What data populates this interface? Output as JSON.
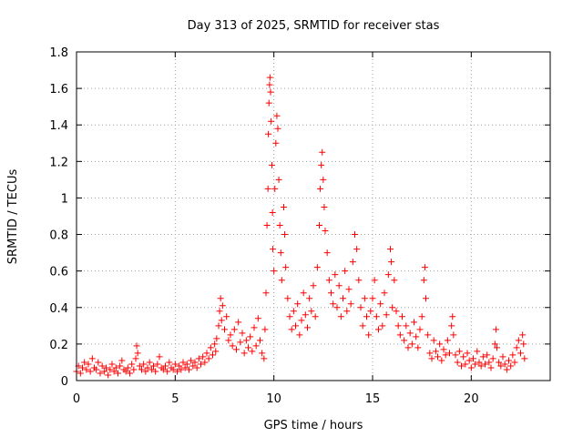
{
  "chart_data": {
    "type": "scatter",
    "title": "Day 313 of 2025, SRMTID for receiver stas",
    "xlabel": "GPS time / hours",
    "ylabel": "SRMTID / TECUs",
    "xlim": [
      0,
      24
    ],
    "ylim": [
      0,
      1.8
    ],
    "x_ticks": [
      0,
      5,
      10,
      15,
      20
    ],
    "x_tick_labels": [
      "0",
      "5",
      "10",
      "15",
      "20"
    ],
    "y_ticks": [
      0,
      0.2,
      0.4,
      0.6,
      0.8,
      1.0,
      1.2,
      1.4,
      1.6,
      1.8
    ],
    "y_tick_labels": [
      "0",
      "0.2",
      "0.4",
      "0.6",
      "0.8",
      "1",
      "1.2",
      "1.4",
      "1.6",
      "1.8"
    ],
    "grid": true,
    "marker": "+",
    "color": "#ff0000",
    "series": [
      {
        "name": "SRMTID",
        "points": [
          [
            0.0,
            0.05
          ],
          [
            0.1,
            0.08
          ],
          [
            0.2,
            0.04
          ],
          [
            0.3,
            0.07
          ],
          [
            0.4,
            0.1
          ],
          [
            0.5,
            0.06
          ],
          [
            0.6,
            0.09
          ],
          [
            0.7,
            0.05
          ],
          [
            0.8,
            0.12
          ],
          [
            0.9,
            0.07
          ],
          [
            1.0,
            0.06
          ],
          [
            1.1,
            0.1
          ],
          [
            1.2,
            0.04
          ],
          [
            1.3,
            0.08
          ],
          [
            1.4,
            0.05
          ],
          [
            1.5,
            0.07
          ],
          [
            1.6,
            0.03
          ],
          [
            1.7,
            0.06
          ],
          [
            1.8,
            0.09
          ],
          [
            1.9,
            0.05
          ],
          [
            2.0,
            0.07
          ],
          [
            2.1,
            0.04
          ],
          [
            2.2,
            0.08
          ],
          [
            2.3,
            0.11
          ],
          [
            2.4,
            0.06
          ],
          [
            2.5,
            0.05
          ],
          [
            2.6,
            0.07
          ],
          [
            2.7,
            0.04
          ],
          [
            2.8,
            0.09
          ],
          [
            2.9,
            0.06
          ],
          [
            3.0,
            0.12
          ],
          [
            3.05,
            0.19
          ],
          [
            3.1,
            0.15
          ],
          [
            3.2,
            0.08
          ],
          [
            3.3,
            0.06
          ],
          [
            3.4,
            0.09
          ],
          [
            3.5,
            0.05
          ],
          [
            3.6,
            0.07
          ],
          [
            3.7,
            0.1
          ],
          [
            3.8,
            0.06
          ],
          [
            3.9,
            0.08
          ],
          [
            4.0,
            0.05
          ],
          [
            4.1,
            0.09
          ],
          [
            4.2,
            0.13
          ],
          [
            4.3,
            0.07
          ],
          [
            4.4,
            0.06
          ],
          [
            4.5,
            0.08
          ],
          [
            4.6,
            0.05
          ],
          [
            4.7,
            0.1
          ],
          [
            4.8,
            0.07
          ],
          [
            4.9,
            0.06
          ],
          [
            5.0,
            0.09
          ],
          [
            5.1,
            0.05
          ],
          [
            5.2,
            0.08
          ],
          [
            5.3,
            0.06
          ],
          [
            5.4,
            0.1
          ],
          [
            5.5,
            0.07
          ],
          [
            5.6,
            0.09
          ],
          [
            5.7,
            0.06
          ],
          [
            5.8,
            0.11
          ],
          [
            5.9,
            0.08
          ],
          [
            6.0,
            0.1
          ],
          [
            6.1,
            0.07
          ],
          [
            6.2,
            0.12
          ],
          [
            6.3,
            0.09
          ],
          [
            6.4,
            0.13
          ],
          [
            6.5,
            0.1
          ],
          [
            6.6,
            0.15
          ],
          [
            6.7,
            0.12
          ],
          [
            6.8,
            0.18
          ],
          [
            6.9,
            0.14
          ],
          [
            7.0,
            0.2
          ],
          [
            7.05,
            0.16
          ],
          [
            7.1,
            0.23
          ],
          [
            7.2,
            0.3
          ],
          [
            7.25,
            0.38
          ],
          [
            7.3,
            0.45
          ],
          [
            7.35,
            0.33
          ],
          [
            7.4,
            0.41
          ],
          [
            7.5,
            0.28
          ],
          [
            7.6,
            0.35
          ],
          [
            7.7,
            0.22
          ],
          [
            7.8,
            0.25
          ],
          [
            7.9,
            0.19
          ],
          [
            8.0,
            0.28
          ],
          [
            8.1,
            0.17
          ],
          [
            8.2,
            0.32
          ],
          [
            8.3,
            0.21
          ],
          [
            8.4,
            0.26
          ],
          [
            8.5,
            0.15
          ],
          [
            8.6,
            0.22
          ],
          [
            8.7,
            0.18
          ],
          [
            8.8,
            0.24
          ],
          [
            8.9,
            0.16
          ],
          [
            9.0,
            0.29
          ],
          [
            9.1,
            0.19
          ],
          [
            9.2,
            0.34
          ],
          [
            9.3,
            0.22
          ],
          [
            9.4,
            0.15
          ],
          [
            9.5,
            0.12
          ],
          [
            9.55,
            0.28
          ],
          [
            9.6,
            0.48
          ],
          [
            9.65,
            0.85
          ],
          [
            9.7,
            1.05
          ],
          [
            9.72,
            1.35
          ],
          [
            9.75,
            1.52
          ],
          [
            9.78,
            1.62
          ],
          [
            9.8,
            1.66
          ],
          [
            9.83,
            1.58
          ],
          [
            9.86,
            1.42
          ],
          [
            9.9,
            1.18
          ],
          [
            9.93,
            0.92
          ],
          [
            9.95,
            0.72
          ],
          [
            10.0,
            0.6
          ],
          [
            10.05,
            1.05
          ],
          [
            10.1,
            1.3
          ],
          [
            10.15,
            1.45
          ],
          [
            10.2,
            1.38
          ],
          [
            10.25,
            1.1
          ],
          [
            10.3,
            0.85
          ],
          [
            10.35,
            0.7
          ],
          [
            10.4,
            0.55
          ],
          [
            10.5,
            0.95
          ],
          [
            10.55,
            0.8
          ],
          [
            10.6,
            0.62
          ],
          [
            10.7,
            0.45
          ],
          [
            10.8,
            0.35
          ],
          [
            10.9,
            0.28
          ],
          [
            11.0,
            0.38
          ],
          [
            11.1,
            0.3
          ],
          [
            11.2,
            0.42
          ],
          [
            11.3,
            0.25
          ],
          [
            11.4,
            0.33
          ],
          [
            11.5,
            0.48
          ],
          [
            11.6,
            0.36
          ],
          [
            11.7,
            0.29
          ],
          [
            11.8,
            0.45
          ],
          [
            11.9,
            0.38
          ],
          [
            12.0,
            0.52
          ],
          [
            12.1,
            0.35
          ],
          [
            12.2,
            0.62
          ],
          [
            12.3,
            0.85
          ],
          [
            12.35,
            1.05
          ],
          [
            12.4,
            1.18
          ],
          [
            12.45,
            1.25
          ],
          [
            12.5,
            1.1
          ],
          [
            12.55,
            0.95
          ],
          [
            12.6,
            0.82
          ],
          [
            12.7,
            0.7
          ],
          [
            12.8,
            0.55
          ],
          [
            12.9,
            0.48
          ],
          [
            13.0,
            0.42
          ],
          [
            13.1,
            0.58
          ],
          [
            13.2,
            0.4
          ],
          [
            13.3,
            0.52
          ],
          [
            13.4,
            0.35
          ],
          [
            13.5,
            0.45
          ],
          [
            13.6,
            0.6
          ],
          [
            13.7,
            0.38
          ],
          [
            13.8,
            0.5
          ],
          [
            13.9,
            0.42
          ],
          [
            14.0,
            0.65
          ],
          [
            14.1,
            0.8
          ],
          [
            14.2,
            0.72
          ],
          [
            14.3,
            0.55
          ],
          [
            14.4,
            0.4
          ],
          [
            14.5,
            0.3
          ],
          [
            14.6,
            0.45
          ],
          [
            14.7,
            0.35
          ],
          [
            14.8,
            0.25
          ],
          [
            14.9,
            0.38
          ],
          [
            15.0,
            0.45
          ],
          [
            15.1,
            0.55
          ],
          [
            15.2,
            0.35
          ],
          [
            15.3,
            0.28
          ],
          [
            15.4,
            0.42
          ],
          [
            15.5,
            0.3
          ],
          [
            15.6,
            0.48
          ],
          [
            15.7,
            0.36
          ],
          [
            15.8,
            0.58
          ],
          [
            15.9,
            0.72
          ],
          [
            15.95,
            0.65
          ],
          [
            16.0,
            0.4
          ],
          [
            16.1,
            0.55
          ],
          [
            16.2,
            0.38
          ],
          [
            16.3,
            0.3
          ],
          [
            16.4,
            0.25
          ],
          [
            16.5,
            0.35
          ],
          [
            16.6,
            0.22
          ],
          [
            16.7,
            0.3
          ],
          [
            16.8,
            0.18
          ],
          [
            16.9,
            0.26
          ],
          [
            17.0,
            0.2
          ],
          [
            17.1,
            0.32
          ],
          [
            17.2,
            0.24
          ],
          [
            17.3,
            0.18
          ],
          [
            17.4,
            0.28
          ],
          [
            17.5,
            0.35
          ],
          [
            17.6,
            0.55
          ],
          [
            17.65,
            0.62
          ],
          [
            17.7,
            0.45
          ],
          [
            17.8,
            0.25
          ],
          [
            17.9,
            0.15
          ],
          [
            18.0,
            0.12
          ],
          [
            18.1,
            0.22
          ],
          [
            18.2,
            0.16
          ],
          [
            18.3,
            0.13
          ],
          [
            18.4,
            0.2
          ],
          [
            18.5,
            0.11
          ],
          [
            18.6,
            0.17
          ],
          [
            18.7,
            0.14
          ],
          [
            18.8,
            0.22
          ],
          [
            18.9,
            0.15
          ],
          [
            19.0,
            0.3
          ],
          [
            19.05,
            0.35
          ],
          [
            19.1,
            0.25
          ],
          [
            19.2,
            0.14
          ],
          [
            19.3,
            0.1
          ],
          [
            19.4,
            0.16
          ],
          [
            19.5,
            0.08
          ],
          [
            19.6,
            0.13
          ],
          [
            19.7,
            0.09
          ],
          [
            19.8,
            0.15
          ],
          [
            19.9,
            0.11
          ],
          [
            20.0,
            0.07
          ],
          [
            20.1,
            0.12
          ],
          [
            20.2,
            0.09
          ],
          [
            20.3,
            0.16
          ],
          [
            20.4,
            0.1
          ],
          [
            20.5,
            0.08
          ],
          [
            20.6,
            0.13
          ],
          [
            20.7,
            0.09
          ],
          [
            20.8,
            0.14
          ],
          [
            20.9,
            0.1
          ],
          [
            21.0,
            0.07
          ],
          [
            21.1,
            0.12
          ],
          [
            21.2,
            0.2
          ],
          [
            21.25,
            0.28
          ],
          [
            21.3,
            0.18
          ],
          [
            21.4,
            0.1
          ],
          [
            21.5,
            0.08
          ],
          [
            21.6,
            0.13
          ],
          [
            21.7,
            0.09
          ],
          [
            21.8,
            0.06
          ],
          [
            21.9,
            0.11
          ],
          [
            22.0,
            0.08
          ],
          [
            22.1,
            0.14
          ],
          [
            22.2,
            0.1
          ],
          [
            22.3,
            0.18
          ],
          [
            22.4,
            0.22
          ],
          [
            22.5,
            0.15
          ],
          [
            22.6,
            0.25
          ],
          [
            22.65,
            0.2
          ],
          [
            22.7,
            0.12
          ]
        ]
      }
    ]
  }
}
